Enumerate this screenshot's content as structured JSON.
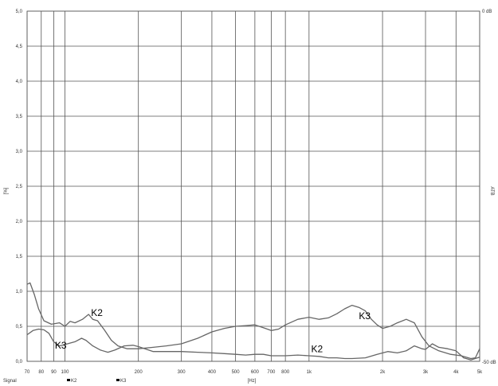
{
  "chart_data": {
    "type": "line",
    "x_scale": "log",
    "xlim": [
      70,
      5000
    ],
    "ylim": [
      0,
      5
    ],
    "grid": true,
    "xlabel": "[Hz]",
    "ylabel": "[%]",
    "right_label": "ATB",
    "right_top_label": "0 dB",
    "right_bottom_label": "-50 dB",
    "x_ticks": [
      {
        "value": 70,
        "label": "70"
      },
      {
        "value": 80,
        "label": "80"
      },
      {
        "value": 90,
        "label": "90"
      },
      {
        "value": 100,
        "label": "100"
      },
      {
        "value": 200,
        "label": "200"
      },
      {
        "value": 300,
        "label": "300"
      },
      {
        "value": 400,
        "label": "400"
      },
      {
        "value": 500,
        "label": "500"
      },
      {
        "value": 600,
        "label": "600"
      },
      {
        "value": 700,
        "label": "700"
      },
      {
        "value": 800,
        "label": "800"
      },
      {
        "value": 1000,
        "label": "1k"
      },
      {
        "value": 2000,
        "label": "2k"
      },
      {
        "value": 3000,
        "label": "3k"
      },
      {
        "value": 4000,
        "label": "4k"
      },
      {
        "value": 5000,
        "label": "5k"
      }
    ],
    "y_ticks": [
      {
        "value": 0,
        "label": "0,0"
      },
      {
        "value": 0.5,
        "label": "0,5"
      },
      {
        "value": 1,
        "label": "1,0"
      },
      {
        "value": 1.5,
        "label": "1,5"
      },
      {
        "value": 2,
        "label": "2,0"
      },
      {
        "value": 2.5,
        "label": "2,5"
      },
      {
        "value": 3,
        "label": "3,0"
      },
      {
        "value": 3.5,
        "label": "3,5"
      },
      {
        "value": 4,
        "label": "4,0"
      },
      {
        "value": 4.5,
        "label": "4,5"
      },
      {
        "value": 5,
        "label": "5,0"
      }
    ],
    "series": [
      {
        "name": "K2",
        "color": "#666666",
        "points": [
          [
            70,
            1.1
          ],
          [
            72,
            1.12
          ],
          [
            75,
            0.95
          ],
          [
            78,
            0.75
          ],
          [
            82,
            0.58
          ],
          [
            88,
            0.53
          ],
          [
            95,
            0.55
          ],
          [
            100,
            0.5
          ],
          [
            105,
            0.57
          ],
          [
            110,
            0.55
          ],
          [
            118,
            0.6
          ],
          [
            125,
            0.67
          ],
          [
            130,
            0.6
          ],
          [
            136,
            0.58
          ],
          [
            145,
            0.45
          ],
          [
            155,
            0.3
          ],
          [
            165,
            0.22
          ],
          [
            180,
            0.18
          ],
          [
            200,
            0.18
          ],
          [
            230,
            0.2
          ],
          [
            260,
            0.22
          ],
          [
            300,
            0.25
          ],
          [
            350,
            0.33
          ],
          [
            400,
            0.42
          ],
          [
            450,
            0.47
          ],
          [
            500,
            0.5
          ],
          [
            550,
            0.51
          ],
          [
            600,
            0.52
          ],
          [
            650,
            0.48
          ],
          [
            700,
            0.44
          ],
          [
            750,
            0.46
          ],
          [
            800,
            0.52
          ],
          [
            900,
            0.6
          ],
          [
            1000,
            0.63
          ],
          [
            1100,
            0.6
          ],
          [
            1200,
            0.62
          ],
          [
            1300,
            0.68
          ],
          [
            1400,
            0.75
          ],
          [
            1500,
            0.8
          ],
          [
            1600,
            0.77
          ],
          [
            1700,
            0.72
          ],
          [
            1800,
            0.6
          ],
          [
            1900,
            0.52
          ],
          [
            2000,
            0.47
          ],
          [
            2150,
            0.5
          ],
          [
            2300,
            0.55
          ],
          [
            2500,
            0.6
          ],
          [
            2700,
            0.55
          ],
          [
            2900,
            0.35
          ],
          [
            3100,
            0.22
          ],
          [
            3400,
            0.15
          ],
          [
            3800,
            0.1
          ],
          [
            4200,
            0.08
          ],
          [
            4600,
            0.04
          ],
          [
            4800,
            0.05
          ],
          [
            5000,
            0.18
          ]
        ]
      },
      {
        "name": "K3",
        "color": "#666666",
        "points": [
          [
            70,
            0.38
          ],
          [
            74,
            0.44
          ],
          [
            78,
            0.46
          ],
          [
            82,
            0.45
          ],
          [
            86,
            0.4
          ],
          [
            90,
            0.28
          ],
          [
            95,
            0.22
          ],
          [
            100,
            0.24
          ],
          [
            110,
            0.28
          ],
          [
            117,
            0.33
          ],
          [
            122,
            0.3
          ],
          [
            130,
            0.22
          ],
          [
            140,
            0.16
          ],
          [
            150,
            0.13
          ],
          [
            160,
            0.16
          ],
          [
            175,
            0.22
          ],
          [
            190,
            0.23
          ],
          [
            200,
            0.21
          ],
          [
            230,
            0.14
          ],
          [
            260,
            0.14
          ],
          [
            300,
            0.14
          ],
          [
            350,
            0.13
          ],
          [
            400,
            0.12
          ],
          [
            450,
            0.11
          ],
          [
            500,
            0.1
          ],
          [
            550,
            0.09
          ],
          [
            600,
            0.1
          ],
          [
            650,
            0.1
          ],
          [
            700,
            0.08
          ],
          [
            800,
            0.08
          ],
          [
            900,
            0.09
          ],
          [
            1000,
            0.08
          ],
          [
            1100,
            0.07
          ],
          [
            1200,
            0.05
          ],
          [
            1300,
            0.05
          ],
          [
            1400,
            0.04
          ],
          [
            1500,
            0.04
          ],
          [
            1700,
            0.05
          ],
          [
            1900,
            0.1
          ],
          [
            2100,
            0.14
          ],
          [
            2300,
            0.12
          ],
          [
            2500,
            0.15
          ],
          [
            2700,
            0.22
          ],
          [
            2800,
            0.2
          ],
          [
            2900,
            0.18
          ],
          [
            3000,
            0.17
          ],
          [
            3200,
            0.25
          ],
          [
            3400,
            0.2
          ],
          [
            3700,
            0.18
          ],
          [
            4000,
            0.15
          ],
          [
            4300,
            0.05
          ],
          [
            4600,
            0.02
          ],
          [
            5000,
            0.06
          ]
        ]
      }
    ],
    "annotations": [
      {
        "text": "K2",
        "x": 128,
        "y": 0.65
      },
      {
        "text": "K3",
        "x": 1600,
        "y": 0.6
      },
      {
        "text": "K3",
        "x": 91,
        "y": 0.18
      },
      {
        "text": "K2",
        "x": 1020,
        "y": 0.13
      }
    ],
    "legend": {
      "placement": "bottom-left",
      "label": "Signal",
      "entries": [
        "K2",
        "K3"
      ]
    }
  }
}
